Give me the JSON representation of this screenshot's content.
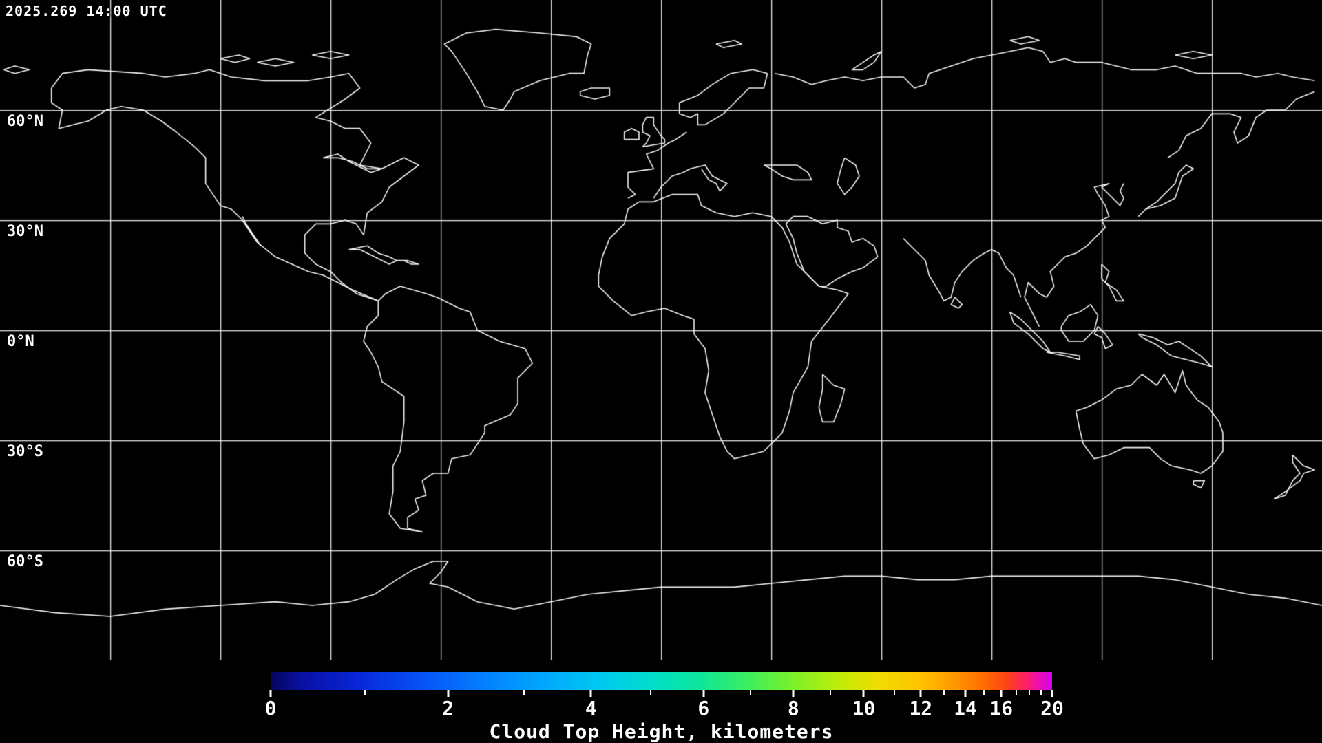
{
  "header": {
    "timestamp": "2025.269 14:00 UTC"
  },
  "map": {
    "projection": "equirectangular",
    "extent": {
      "west": -180,
      "east": 180,
      "north": 90,
      "south": -90
    },
    "graticule": {
      "spacing_deg": 30,
      "color": "#ffffff"
    },
    "latitude_labels": [
      {
        "text": "60°N",
        "lat": 60
      },
      {
        "text": "30°N",
        "lat": 30
      },
      {
        "text": "0°N",
        "lat": 0
      },
      {
        "text": "30°S",
        "lat": -30
      },
      {
        "text": "60°S",
        "lat": -60
      }
    ],
    "clear_sky_color": "#000000",
    "coastline_color": "#ffffff"
  },
  "colorbar": {
    "title": "Cloud Top Height, kilometers",
    "quantity": "Cloud Top Height",
    "units": "kilometers",
    "min": 0,
    "max": 20,
    "scale": "nonlinear-compressed-toward-high-values",
    "major_ticks": [
      {
        "label": "0",
        "value": 0,
        "pct": 0
      },
      {
        "label": "2",
        "value": 2,
        "pct": 22.7
      },
      {
        "label": "4",
        "value": 4,
        "pct": 41.0
      },
      {
        "label": "6",
        "value": 6,
        "pct": 55.4
      },
      {
        "label": "8",
        "value": 8,
        "pct": 66.9
      },
      {
        "label": "10",
        "value": 10,
        "pct": 75.9
      },
      {
        "label": "12",
        "value": 12,
        "pct": 83.2
      },
      {
        "label": "14",
        "value": 14,
        "pct": 88.9
      },
      {
        "label": "16",
        "value": 16,
        "pct": 93.5
      },
      {
        "label": "20",
        "value": 20,
        "pct": 100
      }
    ],
    "minor_ticks": [
      {
        "value": 1,
        "pct": 12.1
      },
      {
        "value": 3,
        "pct": 32.4
      },
      {
        "value": 5,
        "pct": 48.6
      },
      {
        "value": 7,
        "pct": 61.4
      },
      {
        "value": 9,
        "pct": 71.6
      },
      {
        "value": 11,
        "pct": 79.8
      },
      {
        "value": 13,
        "pct": 86.2
      },
      {
        "value": 15,
        "pct": 91.3
      },
      {
        "value": 17,
        "pct": 95.4
      },
      {
        "value": 18,
        "pct": 97.1
      },
      {
        "value": 19,
        "pct": 98.6
      }
    ],
    "palette": [
      {
        "pct": 0,
        "color": "#05055c"
      },
      {
        "pct": 4,
        "color": "#0a10a2"
      },
      {
        "pct": 11,
        "color": "#0726d6"
      },
      {
        "pct": 19,
        "color": "#0750f6"
      },
      {
        "pct": 27,
        "color": "#047eff"
      },
      {
        "pct": 35,
        "color": "#01a8fc"
      },
      {
        "pct": 42,
        "color": "#00c8f0"
      },
      {
        "pct": 49,
        "color": "#00dfc8"
      },
      {
        "pct": 55,
        "color": "#0fe69a"
      },
      {
        "pct": 61,
        "color": "#3bee5e"
      },
      {
        "pct": 67,
        "color": "#7cf128"
      },
      {
        "pct": 73,
        "color": "#c3ec08"
      },
      {
        "pct": 78,
        "color": "#f0dc02"
      },
      {
        "pct": 83,
        "color": "#ffc400"
      },
      {
        "pct": 87,
        "color": "#ff9d00"
      },
      {
        "pct": 91,
        "color": "#ff7000"
      },
      {
        "pct": 94,
        "color": "#ff4612"
      },
      {
        "pct": 96.5,
        "color": "#fb2260"
      },
      {
        "pct": 98.3,
        "color": "#ee0fb0"
      },
      {
        "pct": 100,
        "color": "#ce04f0"
      }
    ]
  }
}
